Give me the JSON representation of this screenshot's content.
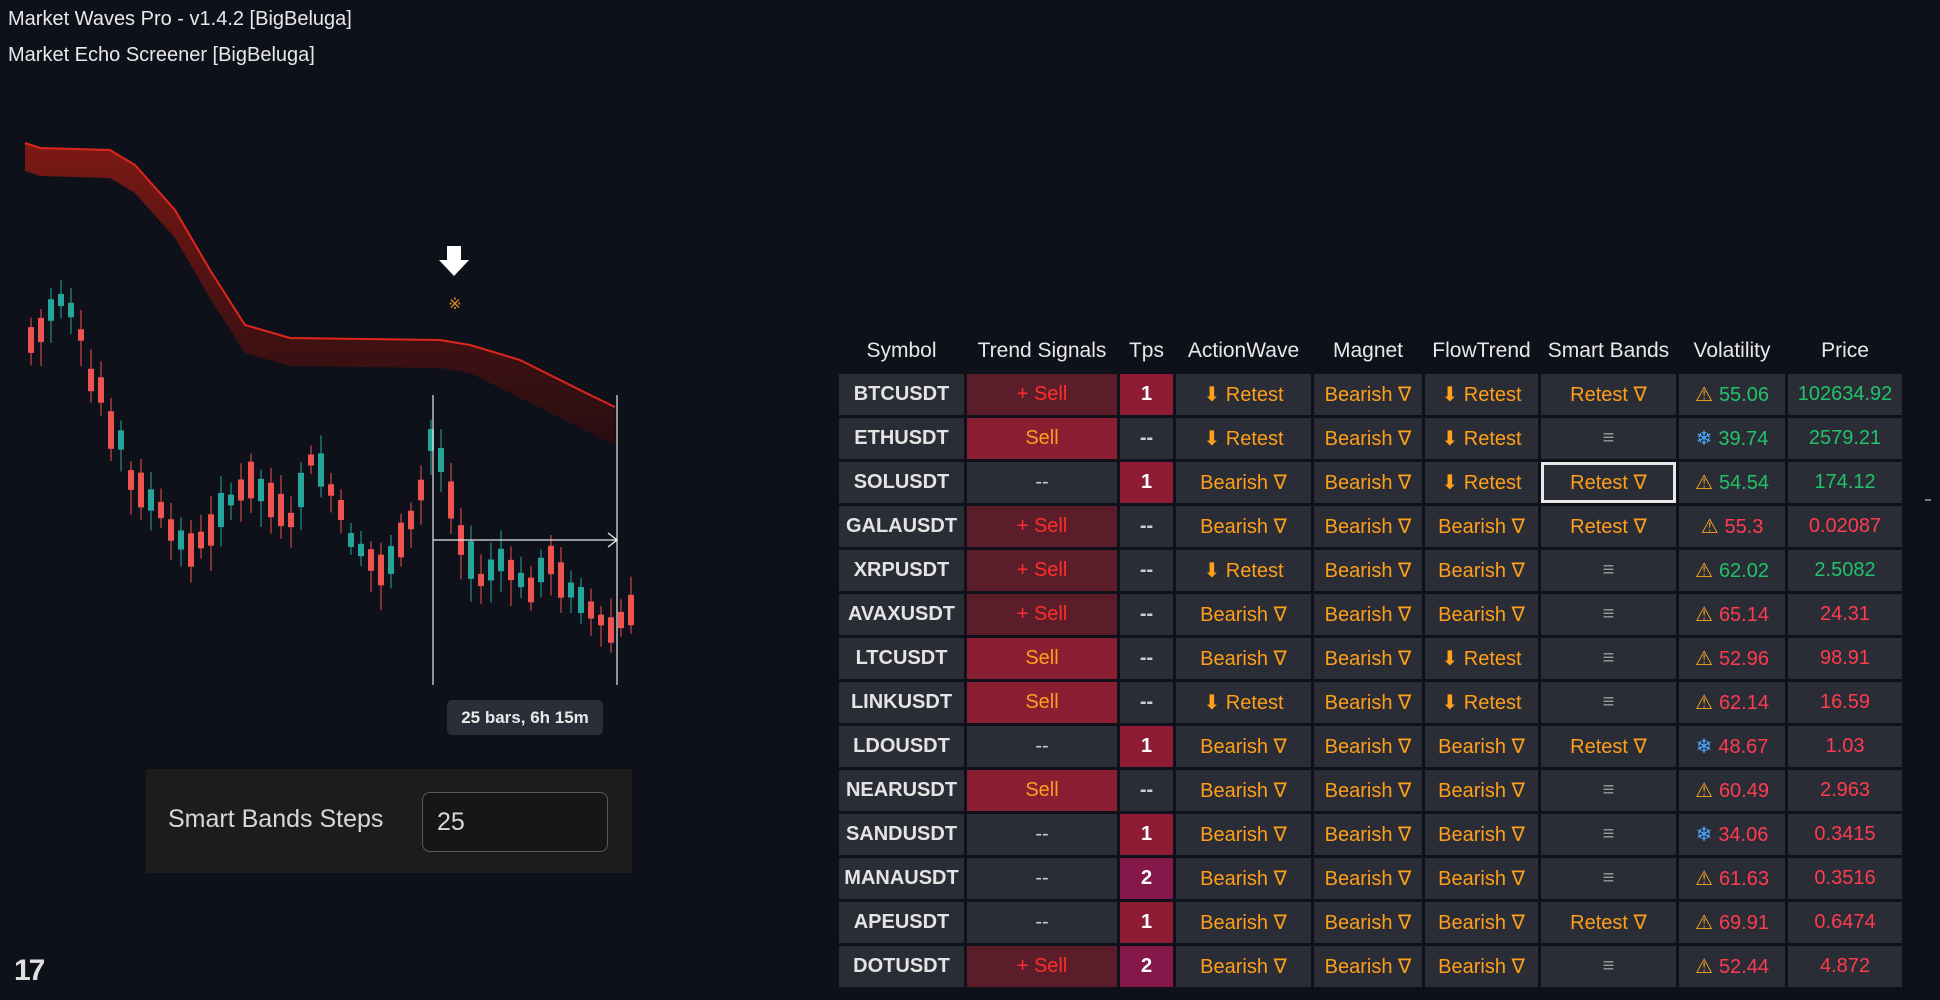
{
  "indicators": [
    "Market Waves Pro - v1.4.2 [BigBeluga]",
    "Market Echo Screener [BigBeluga]"
  ],
  "chart": {
    "measure_label": "25 bars, 6h 15m",
    "sell_marker_icon": "arrow-down-icon",
    "retest_marker_icon": "asterisk-icon",
    "colors": {
      "bull": "#26a69a",
      "bear": "#ef5350",
      "band": "#e0261b"
    }
  },
  "input": {
    "label": "Smart Bands Steps",
    "value": "25"
  },
  "logo": {
    "text": "17"
  },
  "table": {
    "headers": [
      "Symbol",
      "Trend Signals",
      "Tps",
      "ActionWave",
      "Magnet",
      "FlowTrend",
      "Smart Bands",
      "Volatility",
      "Price"
    ],
    "rows": [
      {
        "symbol": "BTCUSDT",
        "trend": "+ Sell",
        "trend_style": "sell",
        "tps": "1",
        "action": "⬇ Retest",
        "magnet": "Bearish ∇",
        "flow": "⬇ Retest",
        "smart": "Retest ∇",
        "vol_icon": "warning-icon",
        "vol": "55.06",
        "vol_color": "green",
        "price": "102634.92",
        "price_color": "green"
      },
      {
        "symbol": "ETHUSDT",
        "trend": "Sell",
        "trend_style": "strong",
        "tps": "--",
        "action": "⬇ Retest",
        "magnet": "Bearish ∇",
        "flow": "⬇ Retest",
        "smart": "≡",
        "vol_icon": "snowflake-icon",
        "vol": "39.74",
        "vol_color": "green",
        "price": "2579.21",
        "price_color": "green"
      },
      {
        "symbol": "SOLUSDT",
        "trend": "--",
        "trend_style": "none",
        "tps": "1",
        "action": "Bearish ∇",
        "magnet": "Bearish ∇",
        "flow": "⬇ Retest",
        "smart": "Retest ∇",
        "smart_highlight": true,
        "vol_icon": "warning-icon",
        "vol": "54.54",
        "vol_color": "green",
        "price": "174.12",
        "price_color": "green"
      },
      {
        "symbol": "GALAUSDT",
        "trend": "+ Sell",
        "trend_style": "sell",
        "tps": "--",
        "action": "Bearish ∇",
        "magnet": "Bearish ∇",
        "flow": "Bearish ∇",
        "smart": "Retest ∇",
        "vol_icon": "warning-icon",
        "vol": "55.3",
        "vol_color": "red",
        "price": "0.02087",
        "price_color": "red"
      },
      {
        "symbol": "XRPUSDT",
        "trend": "+ Sell",
        "trend_style": "sell",
        "tps": "--",
        "action": "⬇ Retest",
        "magnet": "Bearish ∇",
        "flow": "Bearish ∇",
        "smart": "≡",
        "vol_icon": "warning-icon",
        "vol": "62.02",
        "vol_color": "green",
        "price": "2.5082",
        "price_color": "green"
      },
      {
        "symbol": "AVAXUSDT",
        "trend": "+ Sell",
        "trend_style": "sell",
        "tps": "--",
        "action": "Bearish ∇",
        "magnet": "Bearish ∇",
        "flow": "Bearish ∇",
        "smart": "≡",
        "vol_icon": "warning-icon",
        "vol": "65.14",
        "vol_color": "red",
        "price": "24.31",
        "price_color": "red"
      },
      {
        "symbol": "LTCUSDT",
        "trend": "Sell",
        "trend_style": "strong",
        "tps": "--",
        "action": "Bearish ∇",
        "magnet": "Bearish ∇",
        "flow": "⬇ Retest",
        "smart": "≡",
        "vol_icon": "warning-icon",
        "vol": "52.96",
        "vol_color": "red",
        "price": "98.91",
        "price_color": "red"
      },
      {
        "symbol": "LINKUSDT",
        "trend": "Sell",
        "trend_style": "strong",
        "tps": "--",
        "action": "⬇ Retest",
        "magnet": "Bearish ∇",
        "flow": "⬇ Retest",
        "smart": "≡",
        "vol_icon": "warning-icon",
        "vol": "62.14",
        "vol_color": "red",
        "price": "16.59",
        "price_color": "red"
      },
      {
        "symbol": "LDOUSDT",
        "trend": "--",
        "trend_style": "none",
        "tps": "1",
        "action": "Bearish ∇",
        "magnet": "Bearish ∇",
        "flow": "Bearish ∇",
        "smart": "Retest ∇",
        "vol_icon": "snowflake-icon",
        "vol": "48.67",
        "vol_color": "red",
        "price": "1.03",
        "price_color": "red"
      },
      {
        "symbol": "NEARUSDT",
        "trend": "Sell",
        "trend_style": "strong",
        "tps": "--",
        "action": "Bearish ∇",
        "magnet": "Bearish ∇",
        "flow": "Bearish ∇",
        "smart": "≡",
        "vol_icon": "warning-icon",
        "vol": "60.49",
        "vol_color": "red",
        "price": "2.963",
        "price_color": "red"
      },
      {
        "symbol": "SANDUSDT",
        "trend": "--",
        "trend_style": "none",
        "tps": "1",
        "action": "Bearish ∇",
        "magnet": "Bearish ∇",
        "flow": "Bearish ∇",
        "smart": "≡",
        "vol_icon": "snowflake-icon",
        "vol": "34.06",
        "vol_color": "red",
        "price": "0.3415",
        "price_color": "red"
      },
      {
        "symbol": "MANAUSDT",
        "trend": "--",
        "trend_style": "none",
        "tps": "2",
        "action": "Bearish ∇",
        "magnet": "Bearish ∇",
        "flow": "Bearish ∇",
        "smart": "≡",
        "vol_icon": "warning-icon",
        "vol": "61.63",
        "vol_color": "red",
        "price": "0.3516",
        "price_color": "red"
      },
      {
        "symbol": "APEUSDT",
        "trend": "--",
        "trend_style": "none",
        "tps": "1",
        "action": "Bearish ∇",
        "magnet": "Bearish ∇",
        "flow": "Bearish ∇",
        "smart": "Retest ∇",
        "vol_icon": "warning-icon",
        "vol": "69.91",
        "vol_color": "red",
        "price": "0.6474",
        "price_color": "red"
      },
      {
        "symbol": "DOTUSDT",
        "trend": "+ Sell",
        "trend_style": "sell",
        "tps": "2",
        "action": "Bearish ∇",
        "magnet": "Bearish ∇",
        "flow": "Bearish ∇",
        "smart": "≡",
        "vol_icon": "warning-icon",
        "vol": "52.44",
        "vol_color": "red",
        "price": "4.872",
        "price_color": "red"
      }
    ]
  }
}
